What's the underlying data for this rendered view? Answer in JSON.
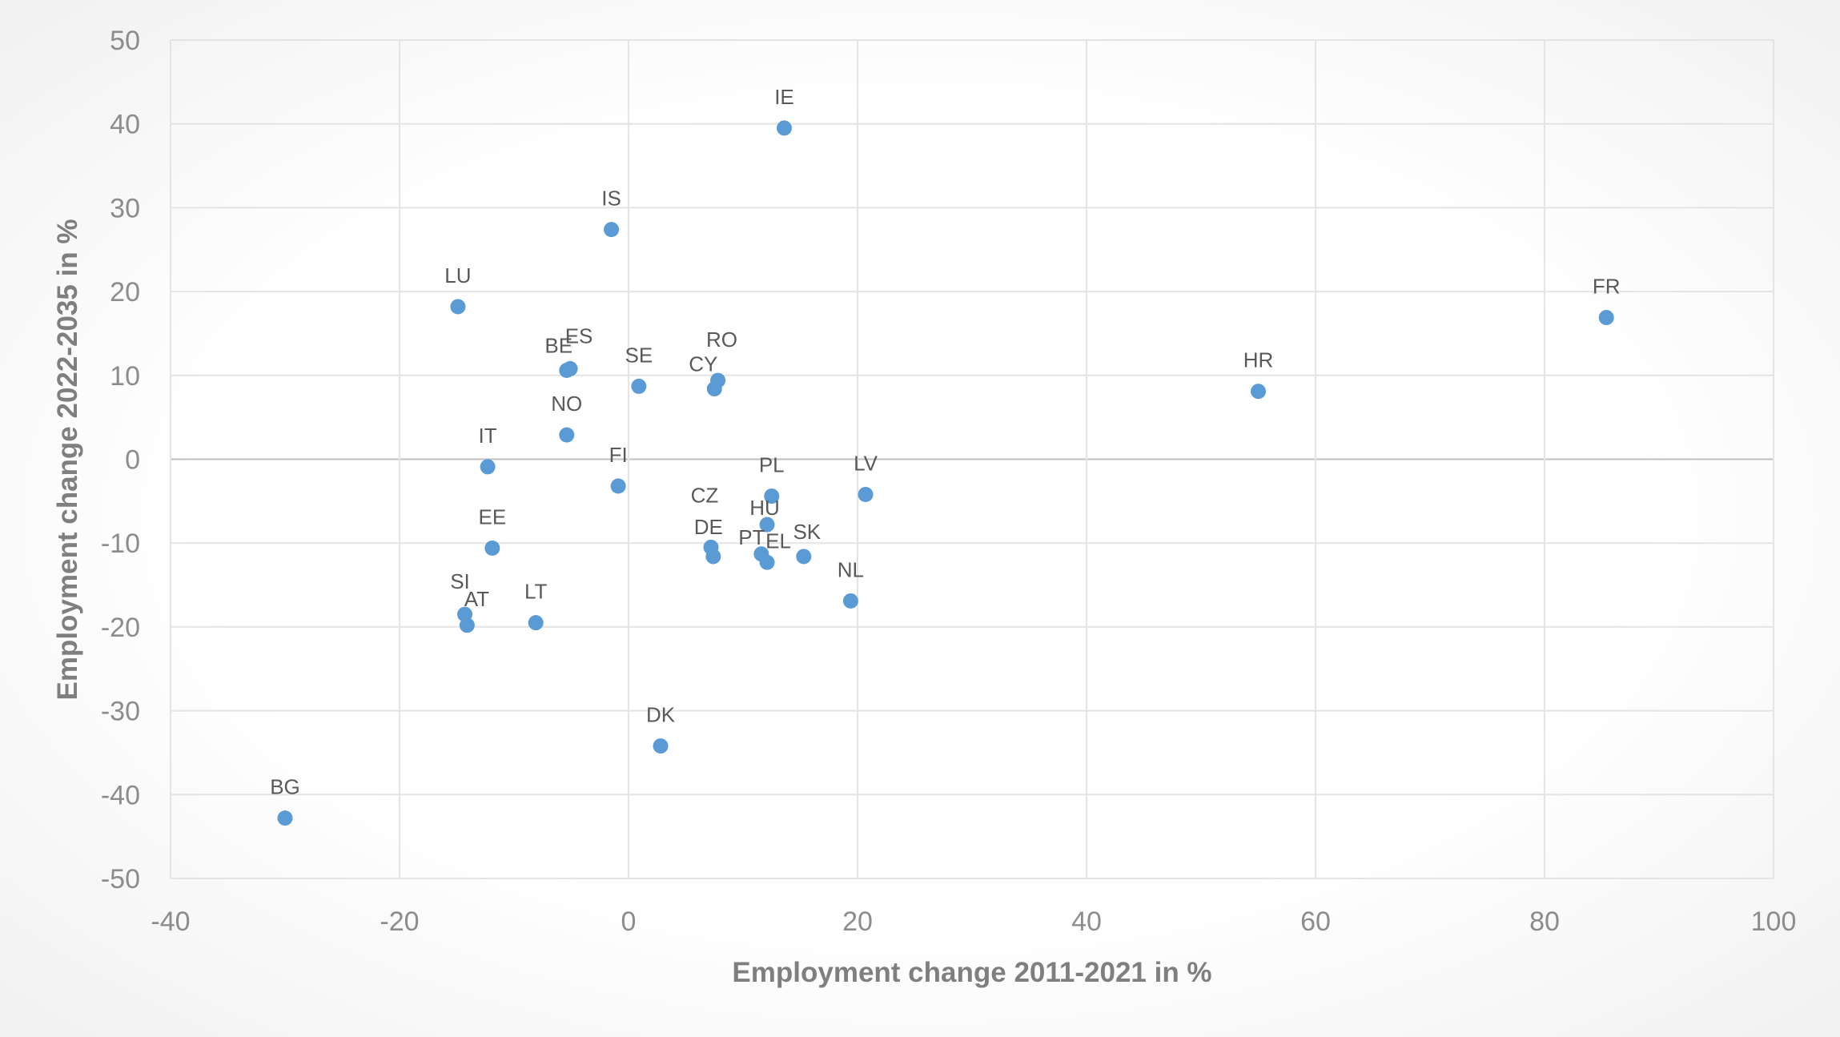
{
  "chart_data": {
    "type": "scatter",
    "title": "",
    "xlabel": "Employment change 2011-2021 in %",
    "ylabel": "Employment change 2022-2035 in %",
    "xlim": [
      -40,
      100
    ],
    "ylim": [
      -50,
      50
    ],
    "x_ticks": [
      -40,
      -20,
      0,
      20,
      40,
      60,
      80,
      100
    ],
    "y_ticks": [
      50,
      40,
      30,
      20,
      10,
      0,
      -10,
      -20,
      -30,
      -40,
      -50
    ],
    "grid": true,
    "marker_color": "#5B9BD5",
    "points": [
      {
        "label": "IE",
        "x": 13.6,
        "y": 39.5
      },
      {
        "label": "IS",
        "x": -1.5,
        "y": 27.4
      },
      {
        "label": "LU",
        "x": -14.9,
        "y": 18.2
      },
      {
        "label": "FR",
        "x": 85.4,
        "y": 16.9
      },
      {
        "label": "ES",
        "x": -5.1,
        "y": 10.8
      },
      {
        "label": "BE",
        "x": -5.4,
        "y": 10.6
      },
      {
        "label": "RO",
        "x": 7.8,
        "y": 9.4
      },
      {
        "label": "SE",
        "x": 0.9,
        "y": 8.7
      },
      {
        "label": "CY",
        "x": 7.5,
        "y": 8.4
      },
      {
        "label": "HR",
        "x": 55.0,
        "y": 8.1
      },
      {
        "label": "NO",
        "x": -5.4,
        "y": 2.9
      },
      {
        "label": "IT",
        "x": -12.3,
        "y": -0.9
      },
      {
        "label": "FI",
        "x": -0.9,
        "y": -3.2
      },
      {
        "label": "PL",
        "x": 12.5,
        "y": -4.4
      },
      {
        "label": "LV",
        "x": 20.7,
        "y": -4.2
      },
      {
        "label": "HU",
        "x": 12.1,
        "y": -7.8
      },
      {
        "label": "CZ",
        "x": 7.2,
        "y": -10.5
      },
      {
        "label": "EE",
        "x": -11.9,
        "y": -10.6
      },
      {
        "label": "PT",
        "x": 11.6,
        "y": -11.3
      },
      {
        "label": "DE",
        "x": 7.4,
        "y": -11.6
      },
      {
        "label": "SK",
        "x": 15.3,
        "y": -11.6
      },
      {
        "label": "EL",
        "x": 12.1,
        "y": -12.3
      },
      {
        "label": "NL",
        "x": 19.4,
        "y": -16.9
      },
      {
        "label": "SI",
        "x": -14.3,
        "y": -18.5
      },
      {
        "label": "LT",
        "x": -8.1,
        "y": -19.5
      },
      {
        "label": "AT",
        "x": -14.1,
        "y": -19.8
      },
      {
        "label": "DK",
        "x": 2.8,
        "y": -34.2
      },
      {
        "label": "BG",
        "x": -30.0,
        "y": -42.8
      }
    ]
  }
}
